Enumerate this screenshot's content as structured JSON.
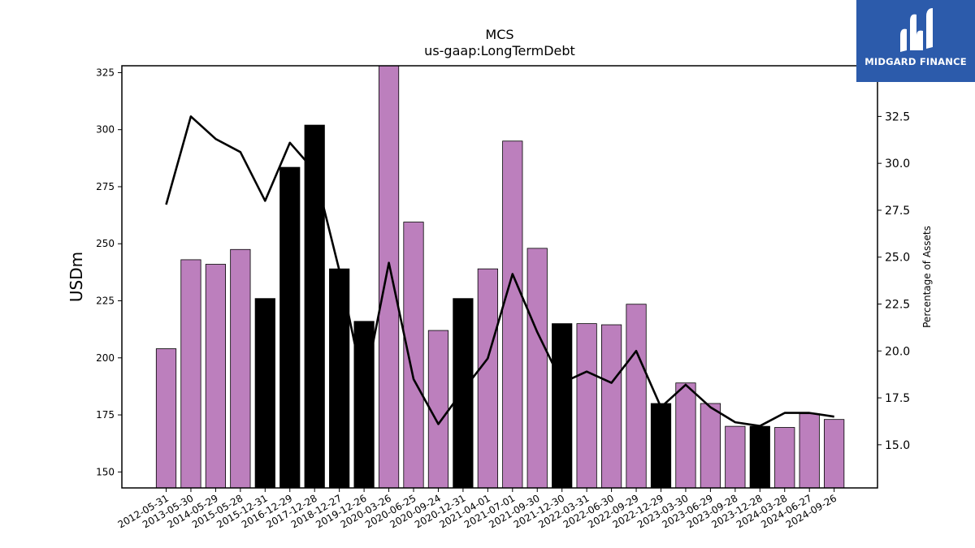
{
  "header": {
    "title": "MCS",
    "subtitle": "us-gaap:LongTermDebt"
  },
  "logo": {
    "text": "MIDGARD FINANCE",
    "background": "#2c5bab"
  },
  "colors": {
    "bar_default": "#bc7fbd",
    "bar_highlight": "#000000",
    "line": "#000000"
  },
  "chart_data": {
    "type": "bar",
    "title": "MCS",
    "subtitle": "us-gaap:LongTermDebt",
    "ylabel": "USDm",
    "y2label": "Percentage of Assets",
    "ylim": [
      143,
      328
    ],
    "y2lim": [
      12.7,
      35.2
    ],
    "yticks": [
      150,
      175,
      200,
      225,
      250,
      275,
      300,
      325
    ],
    "y2ticks": [
      "15.0",
      "17.5",
      "20.0",
      "22.5",
      "25.0",
      "27.5",
      "30.0",
      "32.5"
    ],
    "categories": [
      "2012-05-31",
      "2013-05-30",
      "2014-05-29",
      "2015-05-28",
      "2015-12-31",
      "2016-12-29",
      "2017-12-28",
      "2018-12-27",
      "2019-12-26",
      "2020-03-26",
      "2020-06-25",
      "2020-09-24",
      "2020-12-31",
      "2021-04-01",
      "2021-07-01",
      "2021-09-30",
      "2021-12-30",
      "2022-03-31",
      "2022-06-30",
      "2022-09-29",
      "2022-12-29",
      "2023-03-30",
      "2023-06-29",
      "2023-09-28",
      "2023-12-28",
      "2024-03-28",
      "2024-06-27",
      "2024-09-26"
    ],
    "series": [
      {
        "type": "bar",
        "values": [
          204,
          243,
          241,
          247.5,
          226,
          283.5,
          302,
          239,
          216,
          333,
          259.5,
          212,
          226,
          239,
          295,
          248,
          215,
          215,
          214.5,
          223.5,
          180,
          189,
          180,
          170,
          170,
          169.5,
          175.5,
          173
        ],
        "highlight": [
          false,
          false,
          false,
          false,
          true,
          true,
          true,
          true,
          true,
          false,
          false,
          false,
          true,
          false,
          false,
          false,
          true,
          false,
          false,
          false,
          true,
          false,
          false,
          false,
          true,
          false,
          false,
          false
        ]
      },
      {
        "type": "line",
        "axis": "right",
        "values": [
          27.8,
          32.5,
          31.3,
          30.6,
          28.0,
          31.1,
          29.6,
          24.3,
          18.0,
          24.7,
          18.5,
          16.1,
          17.9,
          19.6,
          24.1,
          21.0,
          18.3,
          18.9,
          18.3,
          20.0,
          17.0,
          18.2,
          17.0,
          16.2,
          16.0,
          16.7,
          16.7,
          16.5
        ]
      }
    ]
  }
}
